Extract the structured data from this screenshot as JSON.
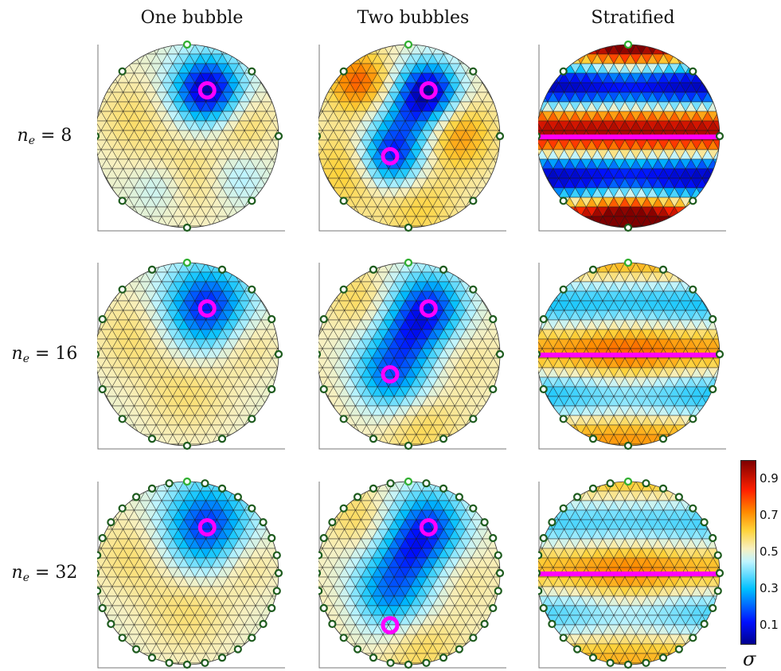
{
  "columns": [
    "One bubble",
    "Two bubbles",
    "Stratified"
  ],
  "rows": [
    {
      "label_main": "n",
      "label_sub": "e",
      "label_rest": " = 8",
      "electrodes": 8
    },
    {
      "label_main": "n",
      "label_sub": "e",
      "label_rest": " = 16",
      "electrodes": 16
    },
    {
      "label_main": "n",
      "label_sub": "e",
      "label_rest": " = 32",
      "electrodes": 32
    }
  ],
  "colorbar": {
    "ticks": [
      "0.9",
      "0.7",
      "0.5",
      "0.3",
      "0.1"
    ],
    "tick_values": [
      0.9,
      0.7,
      0.5,
      0.3,
      0.1
    ],
    "range": [
      0.0,
      1.0
    ],
    "symbol": "σ"
  },
  "colors": {
    "electrode": "#1e5c1e",
    "first_electrode": "#2fae2f",
    "marker": "#ff00ff",
    "mesh": "#222222"
  }
}
